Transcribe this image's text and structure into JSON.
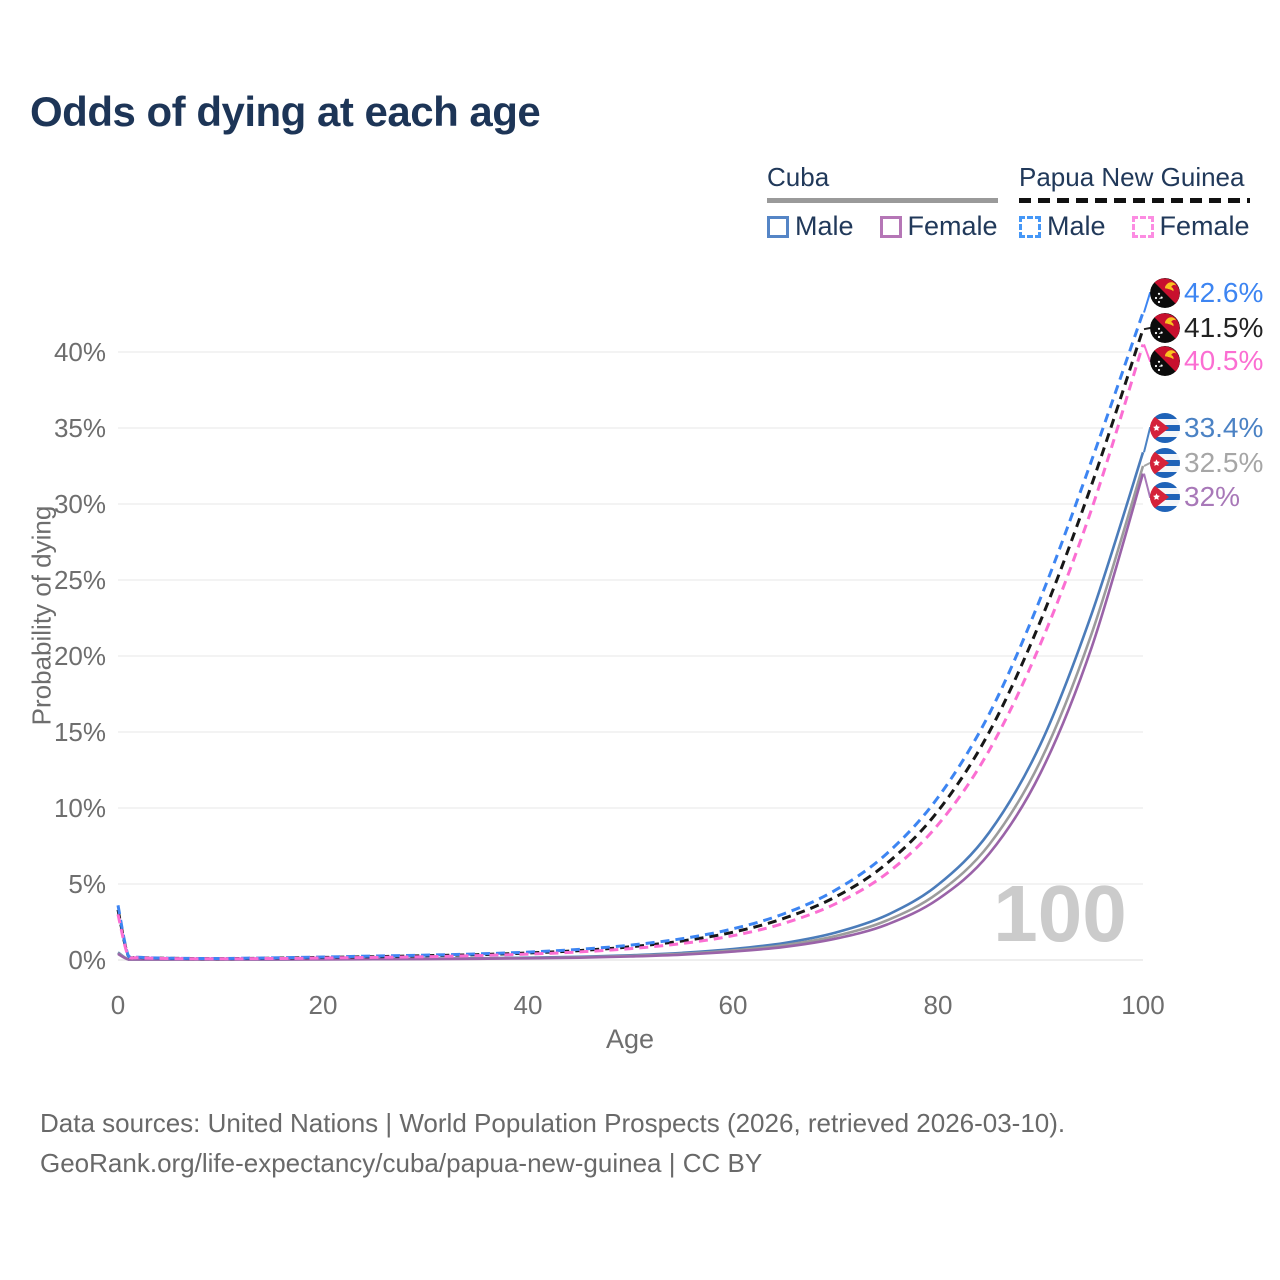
{
  "title": "Odds of dying at each age",
  "legend": {
    "groups": [
      {
        "label": "Cuba",
        "line_style": "solid",
        "underline_color": "#9a9a9a",
        "items": [
          {
            "label": "Male",
            "color": "#5585c6"
          },
          {
            "label": "Female",
            "color": "#b576b6"
          }
        ]
      },
      {
        "label": "Papua New Guinea",
        "line_style": "dashed",
        "underline_color": "#111111",
        "items": [
          {
            "label": "Male",
            "color": "#4597f7"
          },
          {
            "label": "Female",
            "color": "#fc8ce2"
          }
        ]
      }
    ]
  },
  "axes": {
    "x": {
      "title": "Age",
      "ticks": [
        0,
        20,
        40,
        60,
        80,
        100
      ]
    },
    "y": {
      "title": "Probability of dying",
      "ticks": [
        "0%",
        "5%",
        "10%",
        "15%",
        "20%",
        "25%",
        "30%",
        "35%",
        "40%"
      ]
    }
  },
  "watermark": "100",
  "end_labels": [
    {
      "value_text": "42.6%",
      "value": 42.6,
      "country": "papua-new-guinea",
      "series": "Male",
      "color": "#3d85f2"
    },
    {
      "value_text": "41.5%",
      "value": 41.5,
      "country": "papua-new-guinea",
      "series": "Both sexes",
      "color": "#222222"
    },
    {
      "value_text": "40.5%",
      "value": 40.5,
      "country": "papua-new-guinea",
      "series": "Female",
      "color": "#fb6ed2"
    },
    {
      "value_text": "33.4%",
      "value": 33.4,
      "country": "cuba",
      "series": "Male",
      "color": "#4b82c4"
    },
    {
      "value_text": "32.5%",
      "value": 32.5,
      "country": "cuba",
      "series": "Both sexes",
      "color": "#a6a6a6"
    },
    {
      "value_text": "32%",
      "value": 32.0,
      "country": "cuba",
      "series": "Female",
      "color": "#a878b8"
    }
  ],
  "footer": {
    "line1": "Data sources: United Nations | World Population Prospects (2026, retrieved 2026-03-10).",
    "line2": "GeoRank.org/life-expectancy/cuba/papua-new-guinea | CC BY"
  },
  "chart_data": {
    "type": "line",
    "title": "Odds of dying at each age",
    "xlabel": "Age",
    "ylabel": "Probability of dying",
    "xlim": [
      0,
      100
    ],
    "ylim": [
      0,
      44
    ],
    "grid": "horizontal",
    "legend_position": "top-right",
    "y_units": "percent",
    "x": [
      0,
      1,
      2,
      5,
      10,
      15,
      20,
      25,
      30,
      35,
      40,
      45,
      50,
      55,
      60,
      65,
      70,
      75,
      80,
      85,
      90,
      95,
      100
    ],
    "series": [
      {
        "name": "Cuba — Male",
        "color": "#4b7cba",
        "dash": false,
        "values": [
          0.5,
          0.04,
          0.03,
          0.02,
          0.02,
          0.04,
          0.06,
          0.07,
          0.09,
          0.11,
          0.15,
          0.21,
          0.31,
          0.47,
          0.72,
          1.12,
          1.8,
          2.95,
          4.95,
          8.4,
          14.2,
          22.8,
          33.4
        ]
      },
      {
        "name": "Cuba — Both sexes",
        "color": "#9c9c9c",
        "dash": false,
        "values": [
          0.45,
          0.04,
          0.03,
          0.02,
          0.02,
          0.03,
          0.05,
          0.06,
          0.08,
          0.1,
          0.13,
          0.18,
          0.27,
          0.41,
          0.63,
          0.98,
          1.58,
          2.6,
          4.4,
          7.6,
          13.1,
          21.5,
          32.5
        ]
      },
      {
        "name": "Cuba — Female",
        "color": "#9a63a8",
        "dash": false,
        "values": [
          0.4,
          0.03,
          0.02,
          0.02,
          0.02,
          0.03,
          0.04,
          0.05,
          0.06,
          0.08,
          0.11,
          0.15,
          0.23,
          0.35,
          0.55,
          0.86,
          1.4,
          2.33,
          4.0,
          7.0,
          12.3,
          20.6,
          32.0
        ]
      },
      {
        "name": "Papua New Guinea — Both sexes",
        "color": "#171717",
        "dash": true,
        "values": [
          3.3,
          0.26,
          0.17,
          0.11,
          0.09,
          0.12,
          0.17,
          0.22,
          0.28,
          0.35,
          0.46,
          0.62,
          0.87,
          1.25,
          1.83,
          2.75,
          4.15,
          6.35,
          9.8,
          15.0,
          22.3,
          31.3,
          41.5
        ]
      },
      {
        "name": "Papua New Guinea — Male",
        "color": "#3d85f2",
        "dash": true,
        "values": [
          3.6,
          0.28,
          0.18,
          0.12,
          0.1,
          0.14,
          0.2,
          0.26,
          0.32,
          0.4,
          0.52,
          0.7,
          0.98,
          1.4,
          2.05,
          3.05,
          4.6,
          7.0,
          10.7,
          16.2,
          23.8,
          32.9,
          42.6
        ]
      },
      {
        "name": "Papua New Guinea — Female",
        "color": "#fb6ed2",
        "dash": true,
        "values": [
          3.0,
          0.24,
          0.15,
          0.1,
          0.08,
          0.1,
          0.13,
          0.17,
          0.22,
          0.29,
          0.39,
          0.53,
          0.75,
          1.08,
          1.6,
          2.42,
          3.7,
          5.7,
          8.9,
          13.8,
          20.8,
          29.7,
          40.5
        ]
      }
    ]
  }
}
